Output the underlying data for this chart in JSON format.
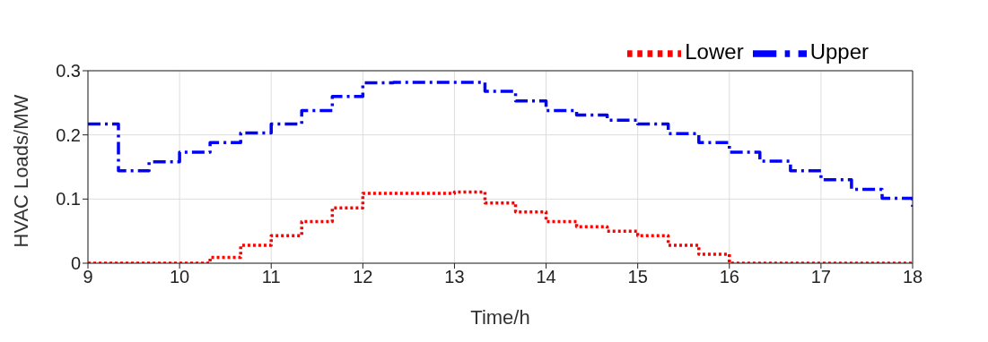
{
  "chart_data": {
    "type": "step",
    "xlabel": "Time/h",
    "ylabel": "HVAC Loads/MW",
    "x": [
      9,
      9.333,
      9.667,
      10,
      10.333,
      10.667,
      11,
      11.333,
      11.667,
      12,
      12.333,
      12.667,
      13,
      13.333,
      13.667,
      14,
      14.333,
      14.667,
      15,
      15.333,
      15.667,
      16,
      16.333,
      16.667,
      17,
      17.333,
      17.667,
      18
    ],
    "series": [
      {
        "name": "Lower",
        "color": "#ff0000",
        "line_style": "dotted",
        "values": [
          0,
          0,
          0,
          0,
          0.009,
          0.028,
          0.043,
          0.065,
          0.086,
          0.109,
          0.109,
          0.109,
          0.111,
          0.094,
          0.08,
          0.065,
          0.057,
          0.05,
          0.043,
          0.028,
          0.014,
          0,
          0,
          0,
          0,
          0,
          0,
          0
        ]
      },
      {
        "name": "Upper",
        "color": "#0000ff",
        "line_style": "dashdot",
        "values": [
          0.217,
          0.144,
          0.158,
          0.173,
          0.188,
          0.203,
          0.217,
          0.238,
          0.26,
          0.281,
          0.282,
          0.282,
          0.282,
          0.268,
          0.253,
          0.238,
          0.231,
          0.223,
          0.217,
          0.202,
          0.188,
          0.173,
          0.159,
          0.144,
          0.13,
          0.115,
          0.101,
          0.088
        ]
      }
    ],
    "xlim": [
      9,
      18
    ],
    "xticks": [
      9,
      10,
      11,
      12,
      13,
      14,
      15,
      16,
      17,
      18
    ],
    "ylim": [
      0,
      0.3
    ],
    "yticks": [
      0,
      0.1,
      0.2,
      0.3
    ],
    "grid": true,
    "legend": "top right",
    "marker": "none"
  }
}
